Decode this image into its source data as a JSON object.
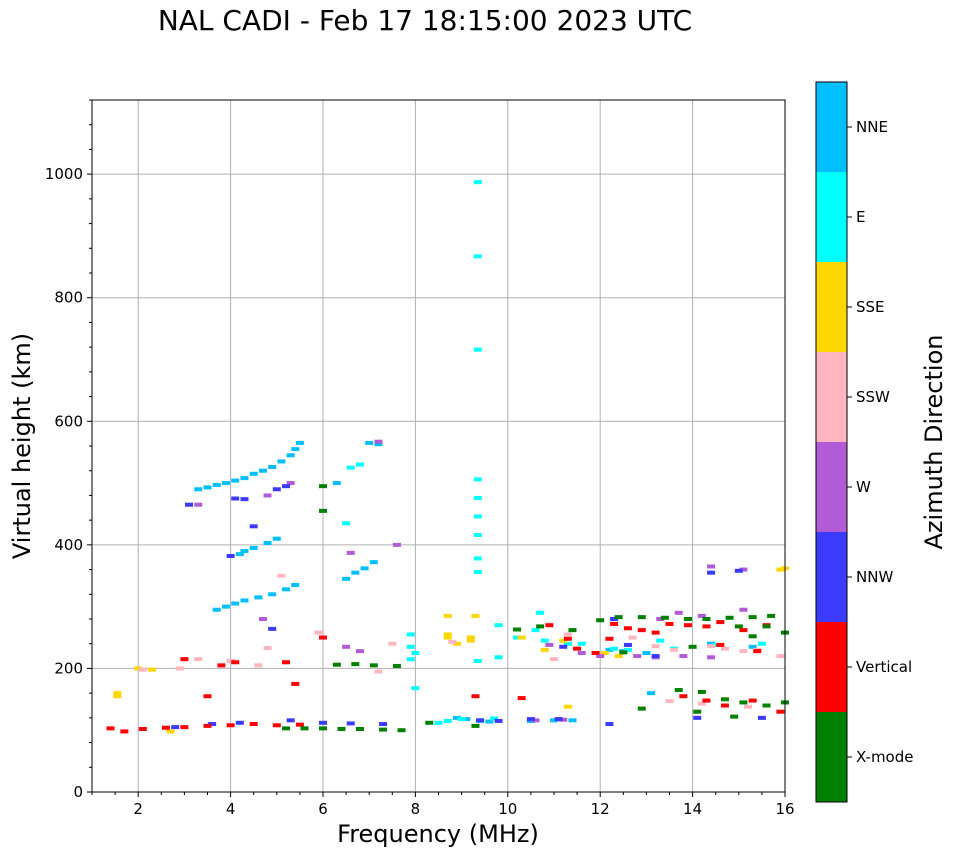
{
  "chart_data": {
    "type": "scatter",
    "title": "NAL CADI - Feb 17 18:15:00 2023 UTC",
    "xlabel": "Frequency (MHz)",
    "ylabel": "Virtual height (km)",
    "xlim": [
      1,
      16
    ],
    "ylim": [
      0,
      1120
    ],
    "xticks": [
      2,
      4,
      6,
      8,
      10,
      12,
      14,
      16
    ],
    "yticks": [
      0,
      200,
      400,
      600,
      800,
      1000
    ],
    "grid": true,
    "colorbar": {
      "label": "Azimuth Direction",
      "categories": [
        "X-mode",
        "Vertical",
        "NNW",
        "W",
        "SSW",
        "SSE",
        "E",
        "NNE"
      ],
      "colors": [
        "#008000",
        "#ff0000",
        "#3b3bff",
        "#b25bd6",
        "#ffb6c1",
        "#ffd700",
        "#00ffff",
        "#00bfff"
      ]
    },
    "series": [
      {
        "name": "NNE",
        "points": [
          [
            3.3,
            490
          ],
          [
            3.5,
            493
          ],
          [
            3.7,
            497
          ],
          [
            3.9,
            500
          ],
          [
            4.1,
            504
          ],
          [
            4.3,
            508
          ],
          [
            4.5,
            515
          ],
          [
            4.7,
            520
          ],
          [
            4.9,
            526
          ],
          [
            5.1,
            535
          ],
          [
            5.3,
            545
          ],
          [
            5.4,
            555
          ],
          [
            5.5,
            565
          ],
          [
            4.2,
            385
          ],
          [
            4.3,
            390
          ],
          [
            4.5,
            395
          ],
          [
            4.8,
            403
          ],
          [
            5.0,
            410
          ],
          [
            3.7,
            295
          ],
          [
            3.9,
            300
          ],
          [
            4.1,
            305
          ],
          [
            4.3,
            310
          ],
          [
            4.6,
            315
          ],
          [
            4.9,
            320
          ],
          [
            5.2,
            328
          ],
          [
            5.4,
            335
          ],
          [
            6.5,
            345
          ],
          [
            6.7,
            355
          ],
          [
            6.9,
            362
          ],
          [
            7.1,
            372
          ],
          [
            6.3,
            500
          ],
          [
            7.0,
            565
          ],
          [
            7.2,
            563
          ],
          [
            8.9,
            120
          ],
          [
            9.1,
            118
          ],
          [
            9.4,
            115
          ],
          [
            9.6,
            114
          ],
          [
            10.5,
            115
          ],
          [
            11.0,
            116
          ],
          [
            11.4,
            116
          ],
          [
            12.2,
            230
          ],
          [
            12.5,
            228
          ],
          [
            13.0,
            225
          ],
          [
            14.4,
            240
          ],
          [
            15.3,
            235
          ],
          [
            13.1,
            160
          ]
        ]
      },
      {
        "name": "E",
        "points": [
          [
            9.35,
            987
          ],
          [
            9.35,
            867
          ],
          [
            9.35,
            716
          ],
          [
            9.35,
            506
          ],
          [
            9.35,
            476
          ],
          [
            9.35,
            446
          ],
          [
            9.35,
            416
          ],
          [
            9.35,
            378
          ],
          [
            9.35,
            356
          ],
          [
            9.35,
            212
          ],
          [
            6.8,
            530
          ],
          [
            6.6,
            525
          ],
          [
            6.5,
            435
          ],
          [
            7.9,
            255
          ],
          [
            7.9,
            235
          ],
          [
            8.0,
            225
          ],
          [
            7.9,
            215
          ],
          [
            8.0,
            168
          ],
          [
            8.5,
            112
          ],
          [
            8.7,
            115
          ],
          [
            9.0,
            118
          ],
          [
            9.4,
            116
          ],
          [
            9.7,
            119
          ],
          [
            9.8,
            270
          ],
          [
            9.8,
            218
          ],
          [
            10.2,
            250
          ],
          [
            10.6,
            262
          ],
          [
            10.8,
            245
          ],
          [
            11.3,
            240
          ],
          [
            11.6,
            240
          ],
          [
            12.3,
            232
          ],
          [
            12.6,
            230
          ],
          [
            13.3,
            245
          ],
          [
            13.6,
            232
          ],
          [
            14.5,
            238
          ],
          [
            15.5,
            240
          ],
          [
            10.7,
            290
          ]
        ]
      },
      {
        "name": "SSE",
        "points": [
          [
            1.55,
            160
          ],
          [
            1.55,
            155
          ],
          [
            2.0,
            200
          ],
          [
            2.3,
            198
          ],
          [
            2.7,
            98
          ],
          [
            8.7,
            255
          ],
          [
            8.7,
            250
          ],
          [
            9.2,
            250
          ],
          [
            9.3,
            285
          ],
          [
            8.7,
            285
          ],
          [
            11.3,
            138
          ],
          [
            10.3,
            250
          ],
          [
            10.8,
            230
          ],
          [
            11.2,
            245
          ],
          [
            12.1,
            225
          ],
          [
            12.4,
            220
          ],
          [
            15.9,
            360
          ],
          [
            16.0,
            362
          ],
          [
            9.2,
            245
          ],
          [
            8.9,
            240
          ]
        ]
      },
      {
        "name": "SSW",
        "points": [
          [
            2.1,
            198
          ],
          [
            2.9,
            200
          ],
          [
            3.3,
            215
          ],
          [
            4.0,
            212
          ],
          [
            4.6,
            205
          ],
          [
            5.1,
            350
          ],
          [
            4.8,
            233
          ],
          [
            5.9,
            258
          ],
          [
            7.2,
            195
          ],
          [
            7.5,
            240
          ],
          [
            8.8,
            243
          ],
          [
            11.0,
            215
          ],
          [
            11.3,
            255
          ],
          [
            12.7,
            250
          ],
          [
            13.2,
            236
          ],
          [
            13.6,
            230
          ],
          [
            14.4,
            236
          ],
          [
            14.7,
            232
          ],
          [
            15.1,
            228
          ],
          [
            15.4,
            230
          ],
          [
            15.9,
            220
          ],
          [
            13.5,
            147
          ],
          [
            14.2,
            143
          ],
          [
            15.2,
            138
          ]
        ]
      },
      {
        "name": "W",
        "points": [
          [
            3.3,
            465
          ],
          [
            4.8,
            480
          ],
          [
            5.3,
            500
          ],
          [
            4.7,
            280
          ],
          [
            6.6,
            387
          ],
          [
            7.2,
            567
          ],
          [
            7.6,
            400
          ],
          [
            6.5,
            235
          ],
          [
            6.8,
            228
          ],
          [
            10.6,
            116
          ],
          [
            11.2,
            117
          ],
          [
            12.0,
            220
          ],
          [
            12.8,
            220
          ],
          [
            13.2,
            218
          ],
          [
            13.8,
            220
          ],
          [
            14.4,
            218
          ],
          [
            13.7,
            290
          ],
          [
            14.2,
            285
          ],
          [
            15.1,
            295
          ],
          [
            15.1,
            360
          ],
          [
            14.4,
            365
          ],
          [
            10.9,
            238
          ],
          [
            11.6,
            225
          ],
          [
            13.3,
            280
          ]
        ]
      },
      {
        "name": "NNW",
        "points": [
          [
            3.1,
            465
          ],
          [
            4.1,
            475
          ],
          [
            4.3,
            474
          ],
          [
            5.2,
            495
          ],
          [
            5.0,
            490
          ],
          [
            4.5,
            430
          ],
          [
            4.0,
            382
          ],
          [
            4.9,
            264
          ],
          [
            2.8,
            105
          ],
          [
            3.6,
            110
          ],
          [
            4.2,
            112
          ],
          [
            5.3,
            116
          ],
          [
            6.0,
            112
          ],
          [
            6.6,
            111
          ],
          [
            7.3,
            110
          ],
          [
            9.4,
            116
          ],
          [
            9.8,
            115
          ],
          [
            10.5,
            118
          ],
          [
            11.1,
            118
          ],
          [
            12.2,
            110
          ],
          [
            14.1,
            120
          ],
          [
            15.5,
            120
          ],
          [
            13.2,
            220
          ],
          [
            12.3,
            280
          ],
          [
            15.0,
            358
          ],
          [
            14.4,
            355
          ],
          [
            11.2,
            235
          ],
          [
            12.6,
            238
          ]
        ]
      },
      {
        "name": "Vertical",
        "points": [
          [
            1.4,
            103
          ],
          [
            1.7,
            98
          ],
          [
            2.1,
            102
          ],
          [
            2.6,
            104
          ],
          [
            3.0,
            105
          ],
          [
            3.5,
            107
          ],
          [
            4.0,
            108
          ],
          [
            4.5,
            110
          ],
          [
            5.0,
            108
          ],
          [
            5.5,
            109
          ],
          [
            3.5,
            155
          ],
          [
            5.4,
            175
          ],
          [
            6.0,
            250
          ],
          [
            4.1,
            210
          ],
          [
            3.0,
            215
          ],
          [
            3.8,
            205
          ],
          [
            5.2,
            210
          ],
          [
            9.3,
            155
          ],
          [
            10.3,
            152
          ],
          [
            10.9,
            270
          ],
          [
            11.3,
            248
          ],
          [
            11.5,
            232
          ],
          [
            11.9,
            225
          ],
          [
            12.3,
            272
          ],
          [
            12.6,
            265
          ],
          [
            12.9,
            262
          ],
          [
            13.2,
            258
          ],
          [
            13.5,
            272
          ],
          [
            13.9,
            270
          ],
          [
            14.3,
            268
          ],
          [
            14.6,
            275
          ],
          [
            15.1,
            262
          ],
          [
            15.6,
            270
          ],
          [
            12.2,
            248
          ],
          [
            13.8,
            155
          ],
          [
            14.3,
            148
          ],
          [
            14.7,
            140
          ],
          [
            15.3,
            148
          ],
          [
            15.9,
            130
          ],
          [
            14.6,
            238
          ],
          [
            15.4,
            228
          ]
        ]
      },
      {
        "name": "X-mode",
        "points": [
          [
            5.2,
            103
          ],
          [
            5.6,
            103
          ],
          [
            6.0,
            103
          ],
          [
            6.4,
            102
          ],
          [
            6.8,
            102
          ],
          [
            7.3,
            101
          ],
          [
            7.7,
            100
          ],
          [
            6.3,
            206
          ],
          [
            6.7,
            207
          ],
          [
            7.1,
            205
          ],
          [
            7.6,
            204
          ],
          [
            6.0,
            495
          ],
          [
            6.0,
            455
          ],
          [
            8.3,
            112
          ],
          [
            9.3,
            107
          ],
          [
            10.2,
            263
          ],
          [
            10.7,
            268
          ],
          [
            11.4,
            262
          ],
          [
            12.0,
            278
          ],
          [
            12.4,
            283
          ],
          [
            12.9,
            283
          ],
          [
            13.4,
            282
          ],
          [
            13.9,
            280
          ],
          [
            14.3,
            280
          ],
          [
            14.8,
            282
          ],
          [
            15.3,
            283
          ],
          [
            15.7,
            285
          ],
          [
            15.0,
            268
          ],
          [
            15.6,
            268
          ],
          [
            16.0,
            258
          ],
          [
            13.7,
            165
          ],
          [
            14.2,
            162
          ],
          [
            14.7,
            150
          ],
          [
            15.1,
            145
          ],
          [
            15.6,
            140
          ],
          [
            16.0,
            145
          ],
          [
            12.9,
            135
          ],
          [
            14.1,
            130
          ],
          [
            14.9,
            122
          ],
          [
            12.5,
            226
          ],
          [
            14.0,
            235
          ],
          [
            15.3,
            252
          ]
        ]
      }
    ]
  }
}
